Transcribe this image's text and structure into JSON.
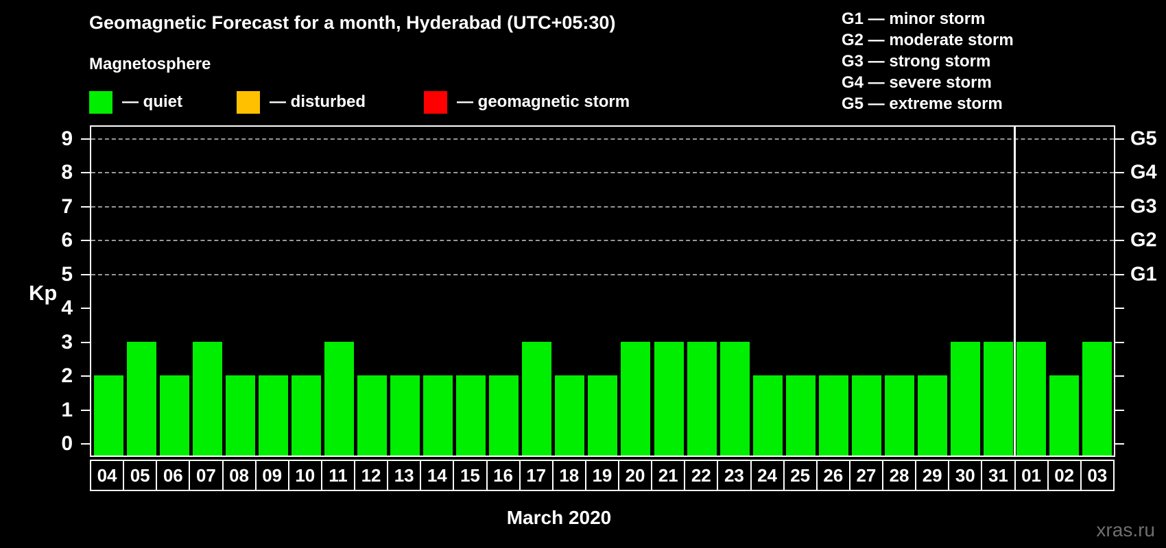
{
  "title": "Geomagnetic Forecast for a month, Hyderabad (UTC+05:30)",
  "subtitle": "Magnetosphere",
  "color_legend": [
    {
      "name": "quiet",
      "label": "— quiet",
      "color": "#00ee00"
    },
    {
      "name": "disturbed",
      "label": "— disturbed",
      "color": "#ffc000"
    },
    {
      "name": "storm",
      "label": "— geomagnetic storm",
      "color": "#ff0000"
    }
  ],
  "storm_scale_legend": [
    "G1 — minor storm",
    "G2 — moderate storm",
    "G3 — strong storm",
    "G4 — severe storm",
    "G5 — extreme storm"
  ],
  "watermark": "xras.ru",
  "chart_data": {
    "type": "bar",
    "title": "Geomagnetic Forecast for a month, Hyderabad (UTC+05:30)",
    "categories": [
      "04",
      "05",
      "06",
      "07",
      "08",
      "09",
      "10",
      "11",
      "12",
      "13",
      "14",
      "15",
      "16",
      "17",
      "18",
      "19",
      "20",
      "21",
      "22",
      "23",
      "24",
      "25",
      "26",
      "27",
      "28",
      "29",
      "30",
      "31",
      "01",
      "02",
      "03"
    ],
    "values": [
      2,
      3,
      2,
      3,
      2,
      2,
      2,
      3,
      2,
      2,
      2,
      2,
      2,
      3,
      2,
      2,
      3,
      3,
      3,
      3,
      2,
      2,
      2,
      2,
      2,
      2,
      3,
      3,
      3,
      2,
      3
    ],
    "bar_color": "#00ee00",
    "ylabel": "Kp",
    "xlabel": "March 2020",
    "ylim": [
      -0.4,
      9.4
    ],
    "yticks": [
      0,
      1,
      2,
      3,
      4,
      5,
      6,
      7,
      8,
      9
    ],
    "gridlines_at": [
      5,
      6,
      7,
      8,
      9
    ],
    "right_axis_labels": {
      "5": "G1",
      "6": "G2",
      "7": "G3",
      "8": "G4",
      "9": "G5"
    },
    "month_separator_after_index": 27,
    "grid": "dashed-horizontal-top-half",
    "legend_position": "top"
  }
}
